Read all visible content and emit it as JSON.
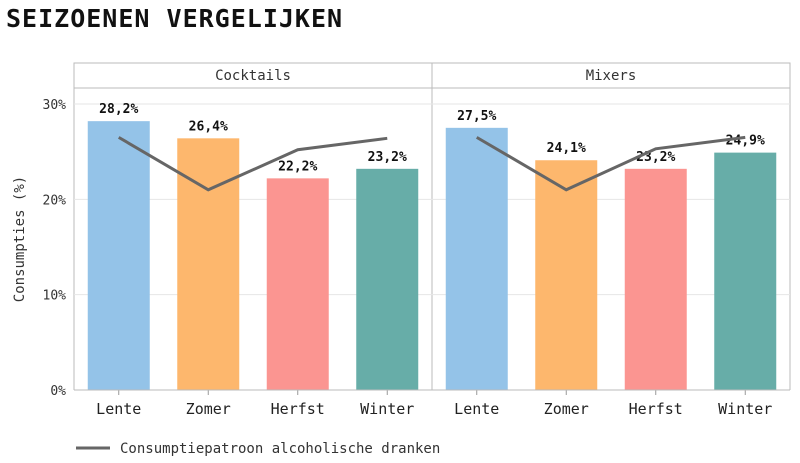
{
  "chart_data": {
    "type": "bar",
    "title": "SEIZOENEN VERGELIJKEN",
    "ylabel": "Consumpties (%)",
    "xlabel": "",
    "ylim": [
      0,
      30
    ],
    "yticks": [
      0,
      10,
      20,
      30
    ],
    "ytick_labels": [
      "0%",
      "10%",
      "20%",
      "30%"
    ],
    "categories": [
      "Lente",
      "Zomer",
      "Herfst",
      "Winter"
    ],
    "bar_colors": [
      "#94c3e8",
      "#fdb76d",
      "#fb9591",
      "#67ada8"
    ],
    "line_color": "#666666",
    "panels": [
      {
        "name": "Cocktails",
        "values": [
          28.2,
          26.4,
          22.2,
          23.2
        ],
        "value_labels": [
          "28,2%",
          "26,4%",
          "22,2%",
          "23,2%"
        ],
        "line_values": [
          26.5,
          21.0,
          25.2,
          26.4
        ]
      },
      {
        "name": "Mixers",
        "values": [
          27.5,
          24.1,
          23.2,
          24.9
        ],
        "value_labels": [
          "27,5%",
          "24,1%",
          "23,2%",
          "24,9%"
        ],
        "line_values": [
          26.5,
          21.0,
          25.3,
          26.5
        ]
      }
    ],
    "legend": {
      "label": "Consumptiepatroon alcoholische dranken",
      "position": "bottom-left"
    }
  }
}
